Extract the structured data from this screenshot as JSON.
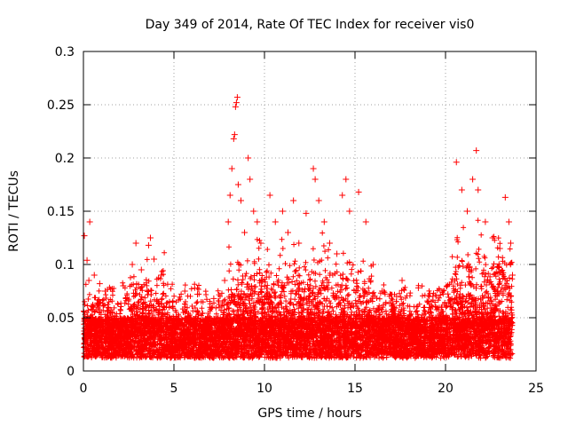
{
  "chart_data": {
    "type": "scatter",
    "title": "Day 349 of 2014, Rate Of TEC Index for receiver vis0",
    "xlabel": "GPS time / hours",
    "ylabel": "ROTI / TECUs",
    "xlim": [
      0,
      25
    ],
    "ylim": [
      0,
      0.3
    ],
    "x_ticks": [
      0,
      5,
      10,
      15,
      20,
      25
    ],
    "x_tick_labels": [
      "0",
      "5",
      "10",
      "15",
      "20",
      "25"
    ],
    "y_ticks": [
      0,
      0.05,
      0.1,
      0.15,
      0.2,
      0.25,
      0.3
    ],
    "y_tick_labels": [
      "0",
      "0.05",
      "0.1",
      "0.15",
      "0.2",
      "0.25",
      "0.3"
    ],
    "grid": true,
    "marker": "plus",
    "color": "#ff0000",
    "series": [
      {
        "name": "ROTI",
        "points": [
          [
            0.05,
            0.127
          ],
          [
            0.2,
            0.104
          ],
          [
            0.35,
            0.14
          ],
          [
            0.3,
            0.085
          ],
          [
            0.6,
            0.09
          ],
          [
            0.9,
            0.082
          ],
          [
            1.2,
            0.075
          ],
          [
            2.2,
            0.08
          ],
          [
            2.7,
            0.1
          ],
          [
            2.9,
            0.12
          ],
          [
            3.2,
            0.095
          ],
          [
            3.6,
            0.118
          ],
          [
            3.7,
            0.125
          ],
          [
            3.9,
            0.105
          ],
          [
            4.3,
            0.09
          ],
          [
            5.6,
            0.075
          ],
          [
            6.3,
            0.072
          ],
          [
            7.2,
            0.068
          ],
          [
            7.8,
            0.085
          ],
          [
            8.0,
            0.14
          ],
          [
            8.1,
            0.165
          ],
          [
            8.2,
            0.19
          ],
          [
            8.3,
            0.218
          ],
          [
            8.35,
            0.222
          ],
          [
            8.4,
            0.248
          ],
          [
            8.45,
            0.252
          ],
          [
            8.5,
            0.257
          ],
          [
            8.55,
            0.175
          ],
          [
            8.7,
            0.16
          ],
          [
            8.9,
            0.13
          ],
          [
            9.1,
            0.2
          ],
          [
            9.2,
            0.18
          ],
          [
            9.4,
            0.15
          ],
          [
            9.6,
            0.14
          ],
          [
            9.8,
            0.12
          ],
          [
            10.3,
            0.165
          ],
          [
            10.6,
            0.14
          ],
          [
            11.0,
            0.15
          ],
          [
            11.3,
            0.13
          ],
          [
            11.6,
            0.16
          ],
          [
            11.9,
            0.12
          ],
          [
            12.3,
            0.148
          ],
          [
            12.7,
            0.19
          ],
          [
            12.8,
            0.18
          ],
          [
            13.0,
            0.16
          ],
          [
            13.3,
            0.14
          ],
          [
            13.6,
            0.12
          ],
          [
            14.0,
            0.11
          ],
          [
            14.3,
            0.165
          ],
          [
            14.5,
            0.18
          ],
          [
            14.7,
            0.15
          ],
          [
            15.2,
            0.168
          ],
          [
            15.6,
            0.14
          ],
          [
            16.0,
            0.1
          ],
          [
            16.5,
            0.075
          ],
          [
            17.3,
            0.07
          ],
          [
            17.6,
            0.085
          ],
          [
            18.5,
            0.078
          ],
          [
            19.3,
            0.07
          ],
          [
            19.8,
            0.06
          ],
          [
            20.6,
            0.196
          ],
          [
            20.9,
            0.17
          ],
          [
            21.2,
            0.15
          ],
          [
            21.5,
            0.18
          ],
          [
            21.7,
            0.207
          ],
          [
            21.8,
            0.17
          ],
          [
            22.2,
            0.14
          ],
          [
            22.6,
            0.125
          ],
          [
            23.0,
            0.115
          ],
          [
            23.3,
            0.163
          ],
          [
            23.5,
            0.14
          ],
          [
            23.6,
            0.12
          ],
          [
            23.7,
            0.09
          ]
        ]
      }
    ]
  }
}
